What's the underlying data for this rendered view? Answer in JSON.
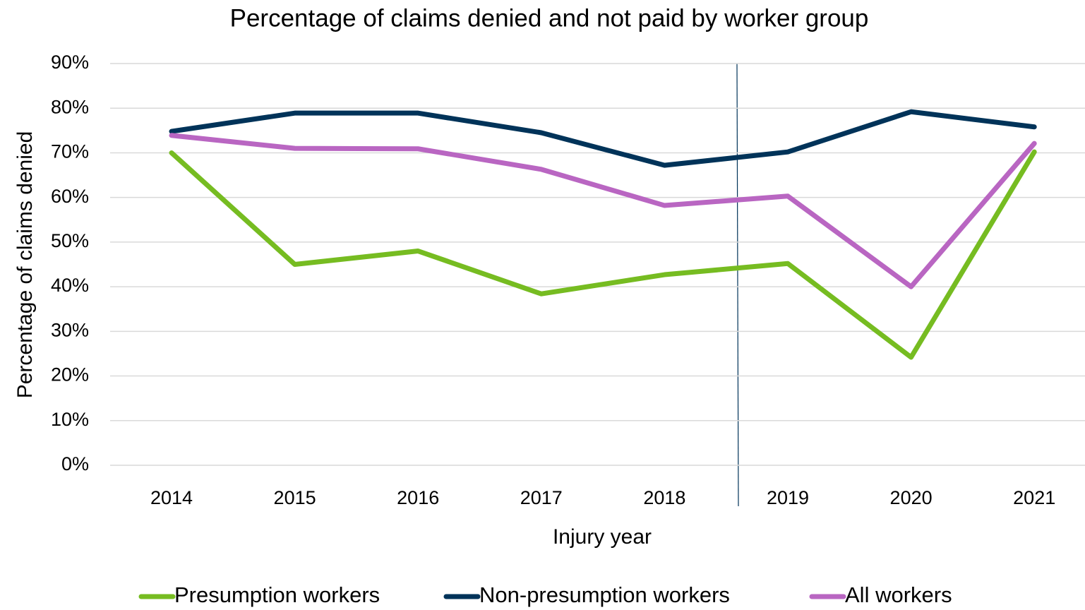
{
  "chart_data": {
    "type": "line",
    "title": "Percentage of claims denied and not paid by worker group",
    "x_label": "Injury year",
    "y_label": "Percentage of claims denied",
    "categories": [
      "2014",
      "2015",
      "2016",
      "2017",
      "2018",
      "2019",
      "2020",
      "2021"
    ],
    "series": [
      {
        "name": "Presumption workers",
        "color": "#76bc21",
        "values": [
          70,
          45,
          48,
          38.4,
          42.7,
          45.2,
          24.2,
          70.2
        ]
      },
      {
        "name": "Non-presumption workers",
        "color": "#003359",
        "values": [
          74.8,
          78.9,
          78.9,
          74.5,
          67.2,
          70.2,
          79.2,
          75.8
        ]
      },
      {
        "name": "All workers",
        "color": "#b966c2",
        "values": [
          73.9,
          71,
          70.9,
          66.3,
          58.2,
          60.3,
          40,
          72.1
        ]
      }
    ],
    "ylim": [
      0,
      90
    ],
    "yticks": [
      {
        "value": 0,
        "label": "0%"
      },
      {
        "value": 10,
        "label": "10%"
      },
      {
        "value": 20,
        "label": "20%"
      },
      {
        "value": 30,
        "label": "30%"
      },
      {
        "value": 40,
        "label": "40%"
      },
      {
        "value": 50,
        "label": "50%"
      },
      {
        "value": 60,
        "label": "60%"
      },
      {
        "value": 70,
        "label": "70%"
      },
      {
        "value": 80,
        "label": "80%"
      },
      {
        "value": 90,
        "label": "90%"
      }
    ],
    "grid": true,
    "legend": "bottom"
  }
}
